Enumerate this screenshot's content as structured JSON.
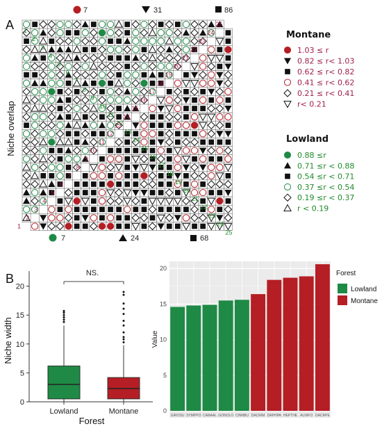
{
  "colors": {
    "lowland": "#1e8a45",
    "montane": "#b41e24",
    "montaneText": "#a0204a",
    "lowlandText": "#1f8a2a",
    "grid": "#dcdcdc",
    "panelBg": "#ebebeb"
  },
  "panelA": {
    "letter": "A",
    "ylabel": "Niche overlap",
    "top_counts": [
      {
        "symbol": "circle-filled",
        "value": "7"
      },
      {
        "symbol": "triangle-down-filled",
        "value": "31"
      },
      {
        "symbol": "square-filled",
        "value": "86"
      }
    ],
    "bottom_counts": [
      {
        "symbol": "circle-filled",
        "value": "7"
      },
      {
        "symbol": "triangle-filled",
        "value": "24"
      },
      {
        "symbol": "square-filled",
        "value": "68"
      }
    ],
    "n": 25,
    "montane_legend": {
      "title": "Montane",
      "items": [
        {
          "symbol": "circle-filled",
          "text": "1.03  ≤ r"
        },
        {
          "symbol": "triangle-down-filled",
          "text": "0.82  ≤ r<  1.03"
        },
        {
          "symbol": "square-filled",
          "text": "0.62  ≤ r<  0.82"
        },
        {
          "symbol": "circle-open",
          "text": "0.41  ≤ r<  0.62"
        },
        {
          "symbol": "diamond-open",
          "text": "0.21  ≤ r<  0.41"
        },
        {
          "symbol": "triangle-down-open",
          "text": "r<  0.21"
        }
      ]
    },
    "lowland_legend": {
      "title": "Lowland",
      "items": [
        {
          "symbol": "circle-filled",
          "text": "0.88  ≤r"
        },
        {
          "symbol": "triangle-filled",
          "text": "0.71  ≤r  <  0.88"
        },
        {
          "symbol": "square-filled",
          "text": "0.54  ≤r  <  0.71"
        },
        {
          "symbol": "circle-open",
          "text": "0.37  ≤r  <  0.54"
        },
        {
          "symbol": "diamond-open",
          "text": "0.19  ≤r  <  0.37"
        },
        {
          "symbol": "triangle-open",
          "text": "r  <  0.19"
        }
      ]
    }
  },
  "panelB": {
    "letter": "B",
    "sig": "NS."
  },
  "panelC": {
    "letter": "C",
    "legend_title": "Forest"
  },
  "chart_data": [
    {
      "type": "box",
      "panel": "B",
      "xlabel": "Forest",
      "ylabel": "Niche width",
      "ylim": [
        0,
        22
      ],
      "yticks": [
        "0",
        "5",
        "10",
        "15",
        "20"
      ],
      "series": [
        {
          "name": "Lowland",
          "q1": 0.5,
          "median": 3,
          "q3": 6.2,
          "whisker_low": 0,
          "whisker_high": 13.2,
          "outliers": [
            13.8,
            14.2,
            14.6,
            15.0,
            15.4,
            15.7
          ]
        },
        {
          "name": "Montane",
          "q1": 0.5,
          "median": 2.3,
          "q3": 4.2,
          "whisker_low": 0,
          "whisker_high": 9.8,
          "outliers": [
            10.3,
            10.8,
            11.2,
            12.0,
            13.2,
            14.0,
            15.2,
            16.1,
            17.0,
            18.5,
            19.0
          ]
        }
      ]
    },
    {
      "type": "bar",
      "panel": "C",
      "ylabel": "Value",
      "ylim": [
        0,
        21
      ],
      "yticks": [
        "0",
        "5",
        "10",
        "15",
        "20"
      ],
      "categories": [
        "GIROSU",
        "SYMPPO",
        "CANAAL",
        "GONOLO",
        "CINNBU",
        "DACRIM",
        "DAPHPA",
        "HEPTHE",
        "ALNIFO",
        "DACRPE"
      ],
      "values": [
        14.6,
        14.8,
        14.9,
        15.5,
        15.6,
        16.4,
        18.4,
        18.7,
        18.9,
        20.6
      ],
      "groups": [
        "Lowland",
        "Lowland",
        "Lowland",
        "Lowland",
        "Lowland",
        "Montane",
        "Montane",
        "Montane",
        "Montane",
        "Montane"
      ],
      "series": [
        {
          "name": "Lowland"
        },
        {
          "name": "Montane"
        }
      ]
    }
  ]
}
